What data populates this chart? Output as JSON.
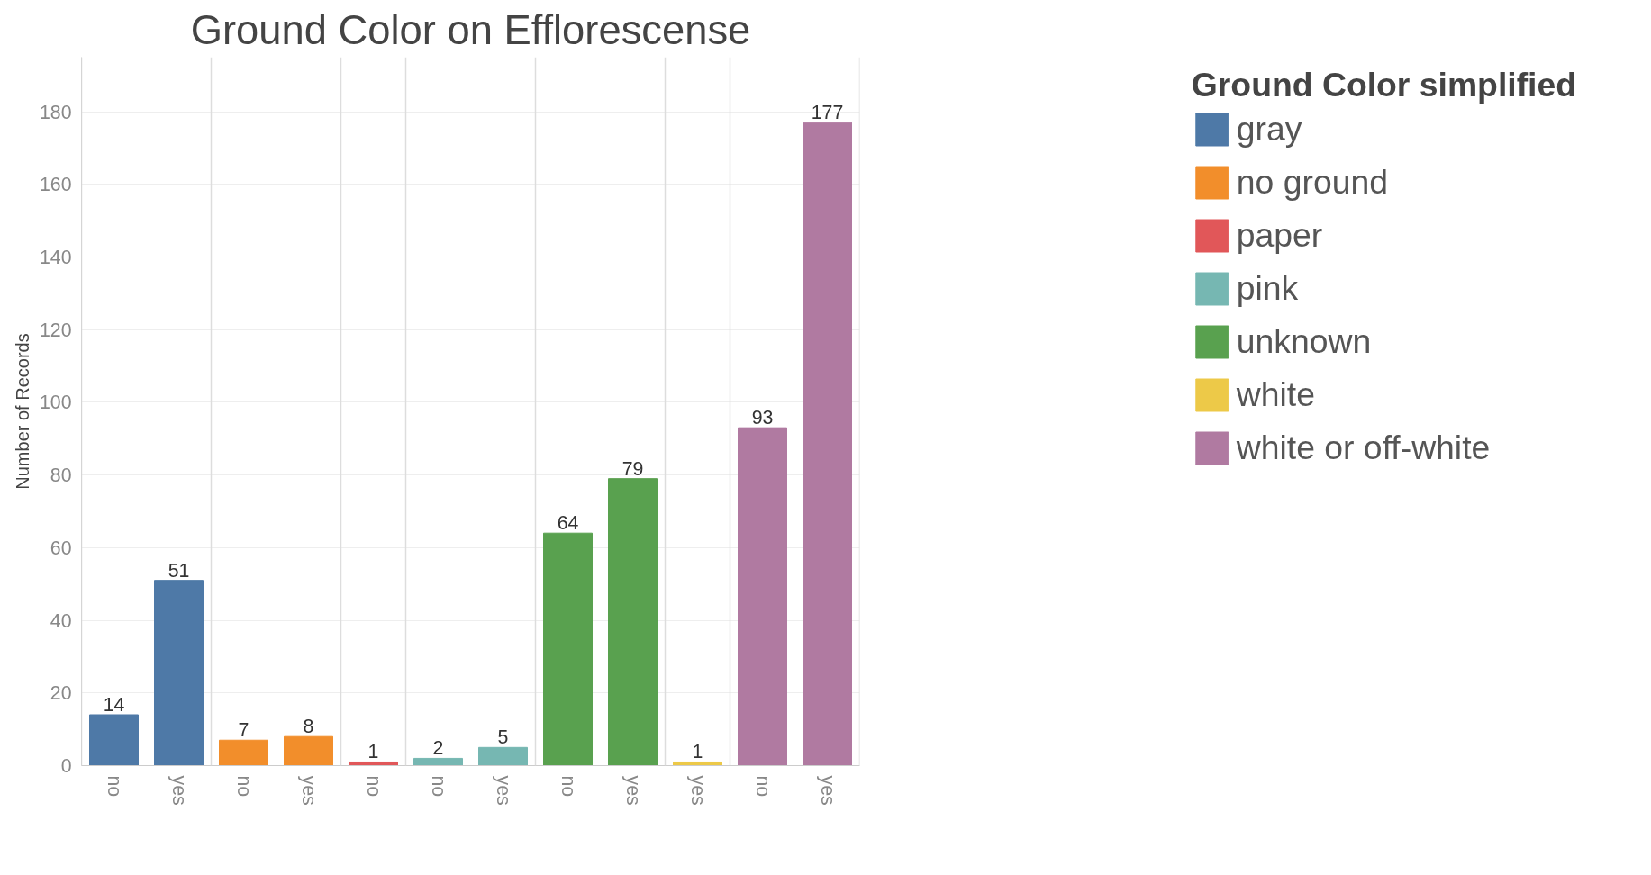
{
  "chart_data": {
    "type": "bar",
    "title": "Ground Color on Efflorescense",
    "ylabel": "Number of Records",
    "legend_title": "Ground Color simplified",
    "categories": [
      "no",
      "yes",
      "no",
      "yes",
      "no",
      "no",
      "yes",
      "no",
      "yes",
      "yes",
      "no",
      "yes"
    ],
    "series": [
      {
        "name": "gray",
        "color": "#4e79a7",
        "values": [
          14,
          51,
          null,
          null,
          null,
          null,
          null,
          null,
          null,
          null,
          null,
          null
        ]
      },
      {
        "name": "no ground",
        "color": "#f28e2b",
        "values": [
          null,
          null,
          7,
          8,
          null,
          null,
          null,
          null,
          null,
          null,
          null,
          null
        ]
      },
      {
        "name": "paper",
        "color": "#e15759",
        "values": [
          null,
          null,
          null,
          null,
          1,
          null,
          null,
          null,
          null,
          null,
          null,
          null
        ]
      },
      {
        "name": "pink",
        "color": "#76b7b2",
        "values": [
          null,
          null,
          null,
          null,
          null,
          2,
          5,
          null,
          null,
          null,
          null,
          null
        ]
      },
      {
        "name": "unknown",
        "color": "#59a14f",
        "values": [
          null,
          null,
          null,
          null,
          null,
          null,
          null,
          64,
          79,
          null,
          null,
          null
        ]
      },
      {
        "name": "white",
        "color": "#edc948",
        "values": [
          null,
          null,
          null,
          null,
          null,
          null,
          null,
          null,
          null,
          1,
          null,
          null
        ]
      },
      {
        "name": "white or off-white",
        "color": "#b07aa1",
        "values": [
          null,
          null,
          null,
          null,
          null,
          null,
          null,
          null,
          null,
          null,
          93,
          177
        ]
      }
    ],
    "ylim": [
      0,
      195
    ],
    "yticks": [
      0,
      20,
      40,
      60,
      80,
      100,
      120,
      140,
      160,
      180
    ],
    "grid": "y",
    "legend": "right",
    "data_labels": true
  }
}
